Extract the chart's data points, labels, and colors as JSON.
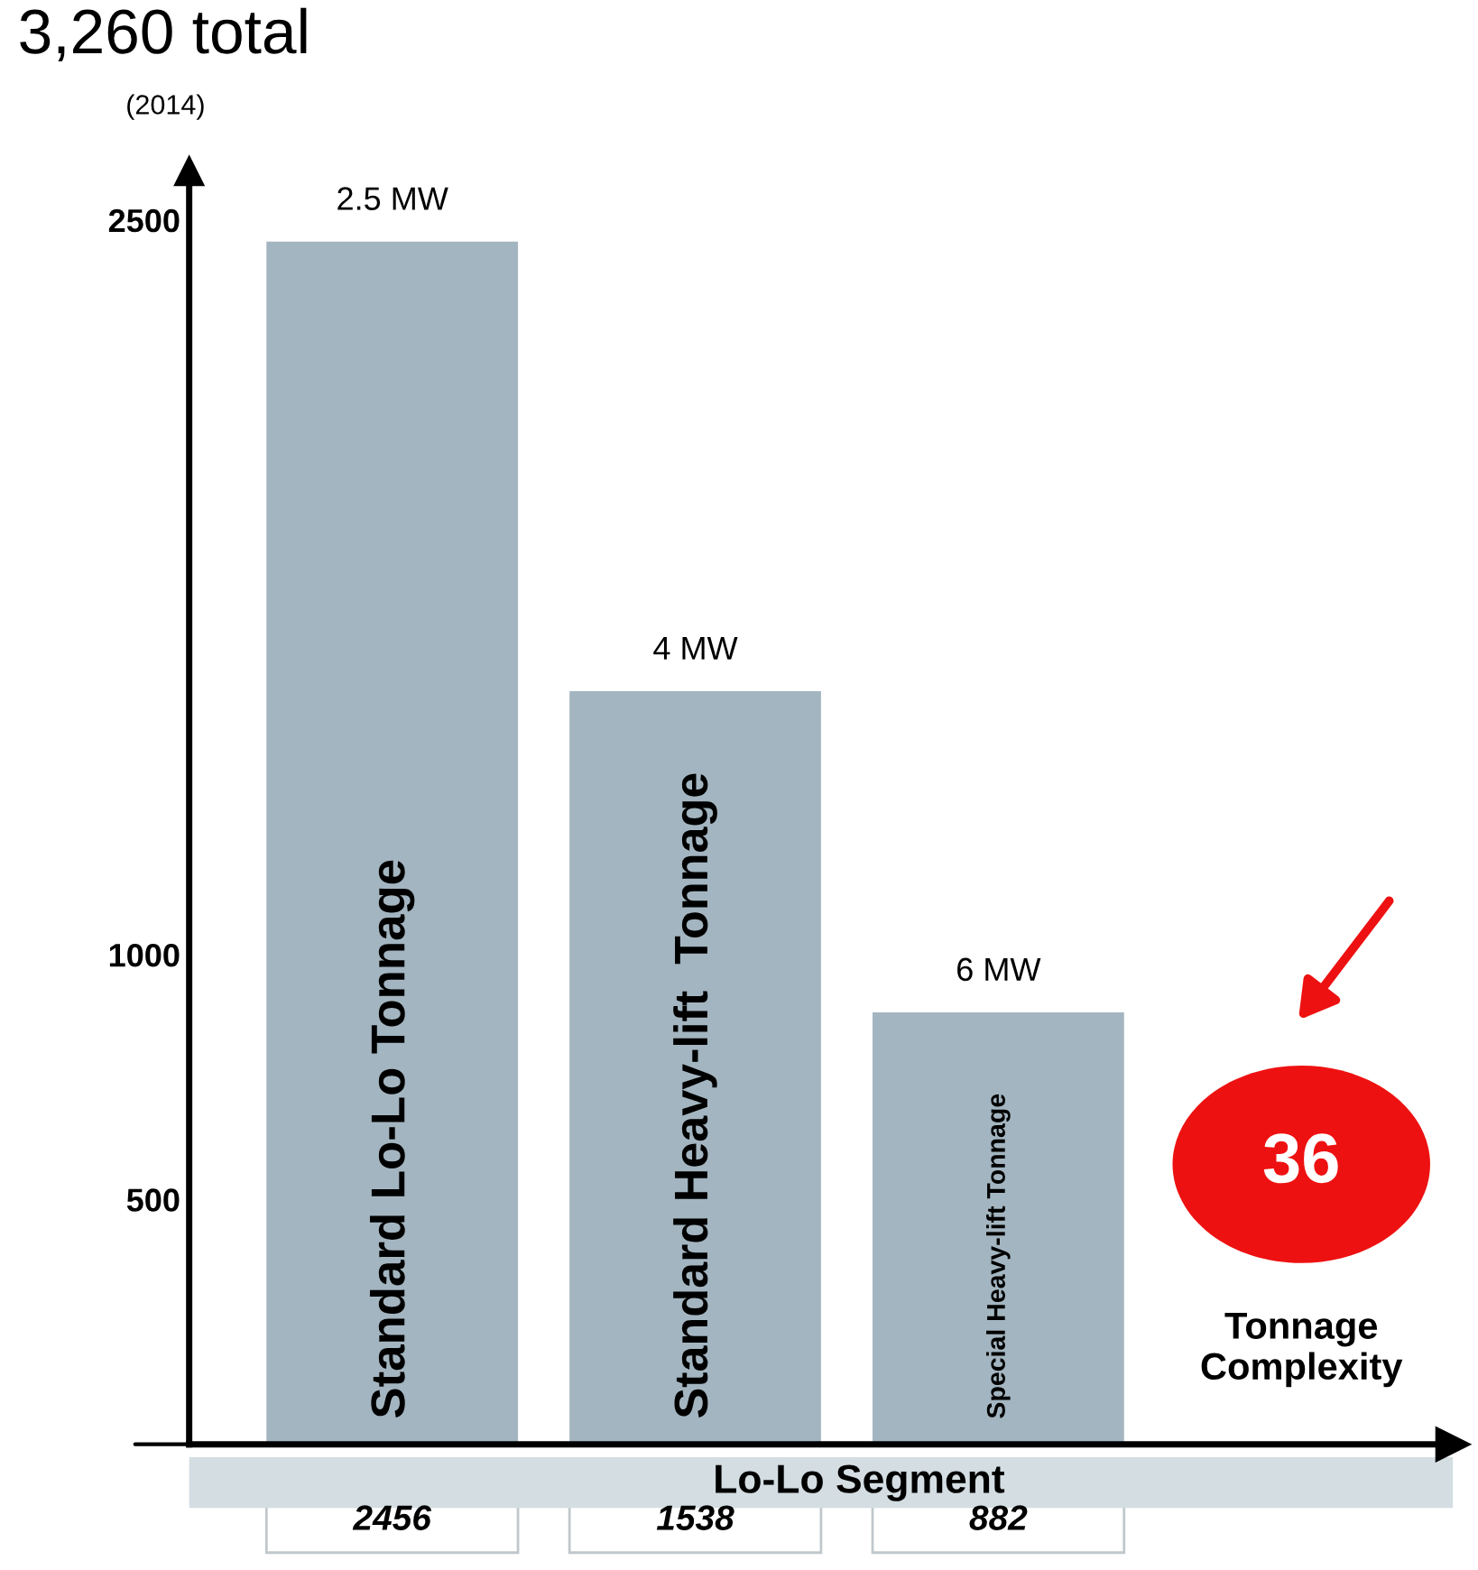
{
  "chart_data": {
    "type": "bar",
    "title": "3,260 total",
    "subtitle": "(2014)",
    "xlabel": "Lo-Lo Segment",
    "categories": [
      "Standard Lo-Lo Tonnage",
      "Standard Heavy-lift  Tonnage",
      "Special Heavy-lift Tonnage",
      null
    ],
    "values": [
      2456,
      1538,
      882,
      null
    ],
    "value_labels": [
      "2456",
      "1538",
      "882",
      null
    ],
    "color": "#a3b5c0",
    "ylim": [
      0,
      2600
    ],
    "yticks": [
      500,
      1000,
      2500
    ],
    "annotations": [
      {
        "text": "2.5 MW",
        "x": "Standard Lo-Lo Tonnage",
        "y": 2456
      },
      {
        "text": "4 MW",
        "x": "Standard Heavy-lift  Tonnage",
        "y": 1538
      },
      {
        "text": "6 MW",
        "x": "Special Heavy-lift Tonnage",
        "y": 882
      },
      "Tonnage Complexity",
      "36"
    ],
    "grid": false
  }
}
